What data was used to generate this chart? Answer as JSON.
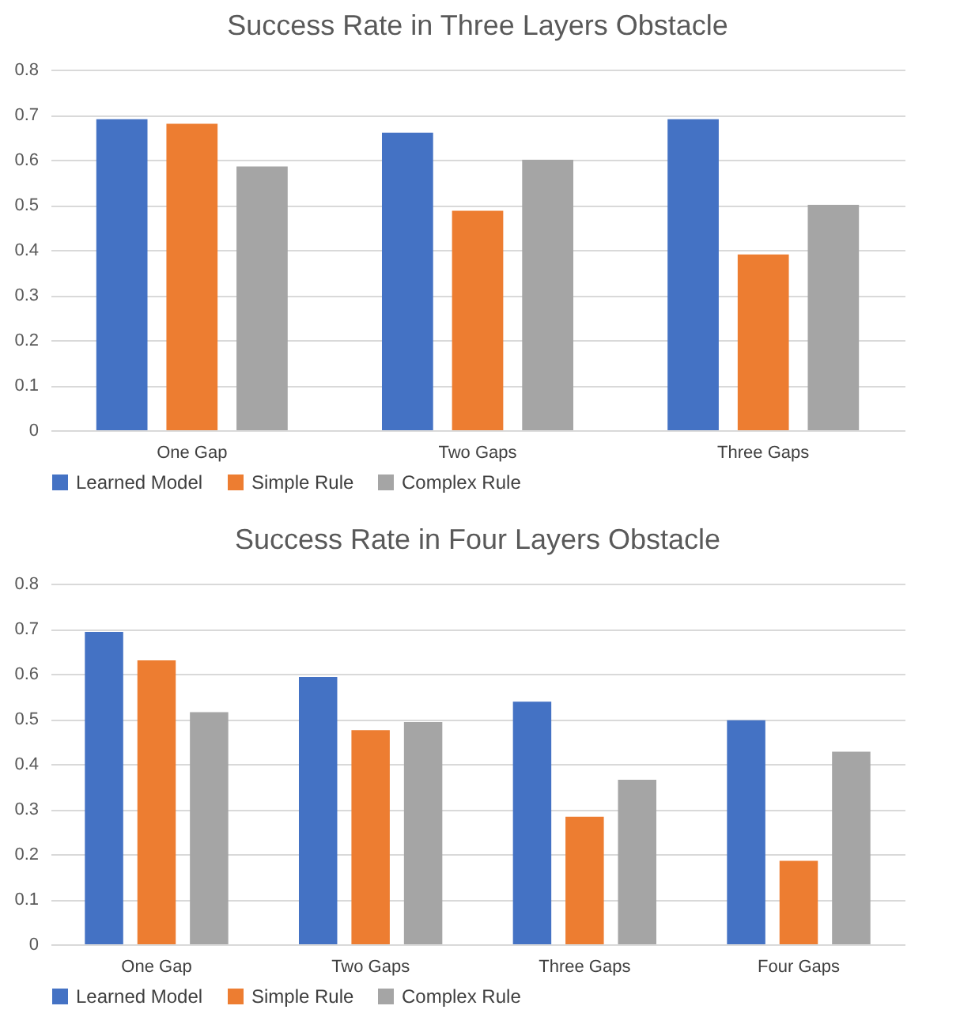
{
  "chart_data": [
    {
      "type": "bar",
      "title": "Success Rate in Three Layers Obstacle",
      "categories": [
        "One Gap",
        "Two  Gaps",
        "Three Gaps"
      ],
      "series": [
        {
          "name": "Learned Model",
          "color": "#4472c4",
          "values": [
            0.69,
            0.66,
            0.69
          ]
        },
        {
          "name": "Simple Rule",
          "color": "#ed7d31",
          "values": [
            0.68,
            0.487,
            0.39
          ]
        },
        {
          "name": "Complex Rule",
          "color": "#a5a5a5",
          "values": [
            0.585,
            0.6,
            0.5
          ]
        }
      ],
      "ylim": [
        0,
        0.8
      ],
      "yticks": [
        0,
        0.1,
        0.2,
        0.3,
        0.4,
        0.5,
        0.6,
        0.7,
        0.8
      ],
      "grid": "y",
      "legend": "bottom"
    },
    {
      "type": "bar",
      "title": "Success Rate in Four Layers Obstacle",
      "categories": [
        "One Gap",
        "Two  Gaps",
        "Three Gaps",
        "Four Gaps"
      ],
      "series": [
        {
          "name": "Learned Model",
          "color": "#4472c4",
          "values": [
            0.693,
            0.593,
            0.538,
            0.497
          ]
        },
        {
          "name": "Simple Rule",
          "color": "#ed7d31",
          "values": [
            0.63,
            0.475,
            0.283,
            0.185
          ]
        },
        {
          "name": "Complex Rule",
          "color": "#a5a5a5",
          "values": [
            0.515,
            0.493,
            0.365,
            0.427
          ]
        }
      ],
      "ylim": [
        0,
        0.8
      ],
      "yticks": [
        0,
        0.1,
        0.2,
        0.3,
        0.4,
        0.5,
        0.6,
        0.7,
        0.8
      ],
      "grid": "y",
      "legend": "bottom"
    }
  ]
}
